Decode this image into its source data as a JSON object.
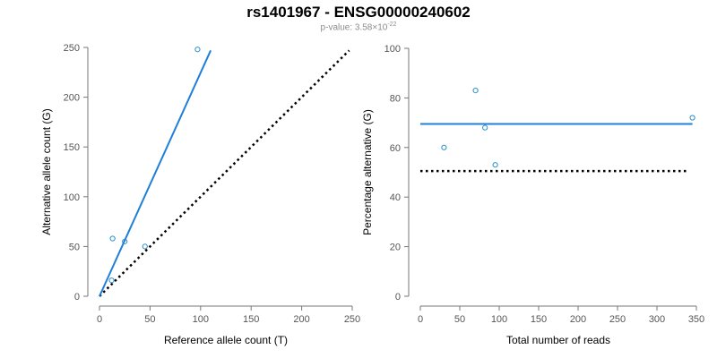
{
  "title": "rs1401967 - ENSG00000240602",
  "subtitle": {
    "prefix": "p-value: 3.58×10",
    "exponent": "-22"
  },
  "colors": {
    "fit": "#1f7fd8",
    "points": "#2a8fc6",
    "reference": "#000000",
    "axis": "#777777"
  },
  "chart_data": [
    {
      "type": "scatter",
      "xlabel": "Reference allele count (T)",
      "ylabel": "Alternative allele count (G)",
      "xlim": [
        0,
        250
      ],
      "ylim": [
        0,
        250
      ],
      "xticks": [
        0,
        50,
        100,
        150,
        200,
        250
      ],
      "yticks": [
        0,
        50,
        100,
        150,
        200,
        250
      ],
      "grid": false,
      "points": [
        {
          "x": 12,
          "y": 16
        },
        {
          "x": 13,
          "y": 58
        },
        {
          "x": 25,
          "y": 55
        },
        {
          "x": 45,
          "y": 50
        },
        {
          "x": 97,
          "y": 248
        }
      ],
      "fit_line": [
        [
          0,
          0
        ],
        [
          110,
          247
        ]
      ],
      "reference_line": [
        [
          0,
          0
        ],
        [
          247,
          247
        ]
      ]
    },
    {
      "type": "scatter",
      "xlabel": "Total number of reads",
      "ylabel": "Percentage alternative (G)",
      "xlim": [
        0,
        350
      ],
      "ylim": [
        0,
        100
      ],
      "xticks": [
        0,
        50,
        100,
        150,
        200,
        250,
        300,
        350
      ],
      "yticks": [
        0,
        20,
        40,
        60,
        80,
        100
      ],
      "grid": false,
      "points": [
        {
          "x": 30,
          "y": 60
        },
        {
          "x": 70,
          "y": 83
        },
        {
          "x": 82,
          "y": 68
        },
        {
          "x": 95,
          "y": 53
        },
        {
          "x": 345,
          "y": 72
        }
      ],
      "fit_line": [
        [
          0,
          69.5
        ],
        [
          345,
          69.5
        ]
      ],
      "reference_line": [
        [
          0,
          50.5
        ],
        [
          340,
          50.5
        ]
      ]
    }
  ]
}
